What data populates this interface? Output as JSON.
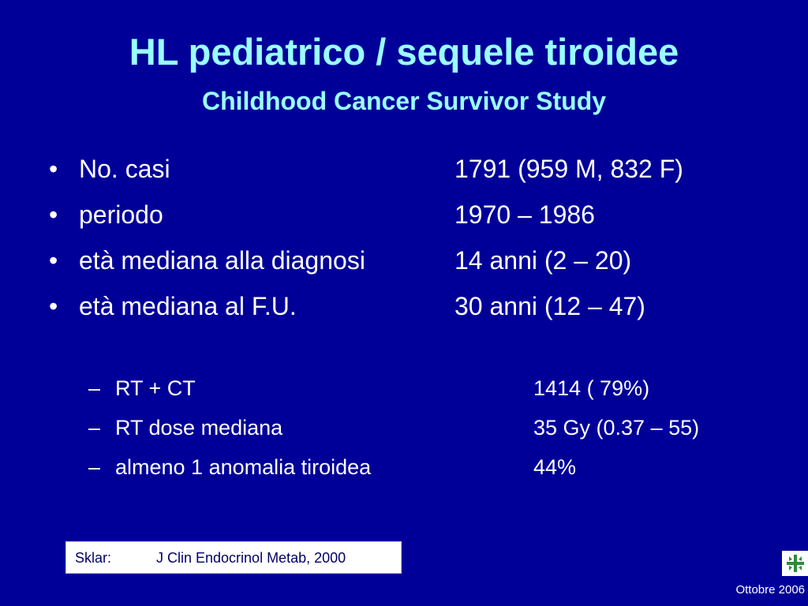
{
  "slide": {
    "title": "HL pediatrico / sequele tiroidee",
    "subtitle": "Childhood Cancer Survivor Study",
    "bullet_marker": "•",
    "bullets": [
      {
        "label": "No. casi",
        "value": "1791 (959 M, 832 F)"
      },
      {
        "label": "periodo",
        "value": "1970 – 1986"
      },
      {
        "label": "età mediana alla diagnosi",
        "value": "14 anni (2 – 20)"
      },
      {
        "label": "età mediana al F.U.",
        "value": "30 anni (12 – 47)"
      }
    ],
    "sub_marker": "–",
    "subbullets": [
      {
        "label": "RT + CT",
        "value": "1414 ( 79%)"
      },
      {
        "label": "RT dose mediana",
        "value": "35 Gy (0.37 – 55)"
      },
      {
        "label": "almeno 1 anomalia tiroidea",
        "value": "44%"
      }
    ],
    "reference": {
      "author": "Sklar:",
      "source": "J Clin Endocrinol Metab, 2000"
    },
    "logo_icon": "green-cross-logo-icon",
    "date": "Ottobre 2006"
  },
  "colors": {
    "background": "#000099",
    "title": "#99FFFF",
    "text": "#FFFFFF",
    "logo_green": "#2e8b3a"
  }
}
